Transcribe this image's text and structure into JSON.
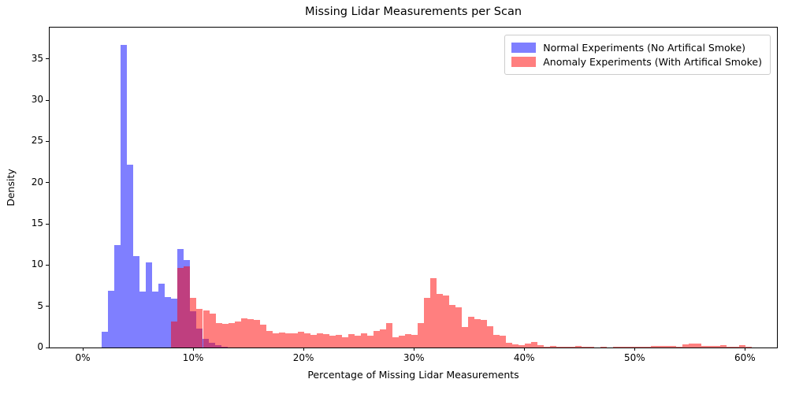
{
  "chart_data": {
    "type": "bar",
    "subtype": "overlaid-density-histogram",
    "title": "Missing Lidar Measurements per Scan",
    "xlabel": "Percentage of Missing Lidar Measurements",
    "ylabel": "Density",
    "grid": false,
    "legend_position": "upper right",
    "xlim": [
      -3.0,
      62.9
    ],
    "ylim": [
      0,
      38.8
    ],
    "x_ticks": [
      {
        "value": 0,
        "label": "0%"
      },
      {
        "value": 10,
        "label": "10%"
      },
      {
        "value": 20,
        "label": "20%"
      },
      {
        "value": 30,
        "label": "30%"
      },
      {
        "value": 40,
        "label": "40%"
      },
      {
        "value": 50,
        "label": "50%"
      },
      {
        "value": 60,
        "label": "60%"
      }
    ],
    "y_ticks": [
      {
        "value": 0,
        "label": "0"
      },
      {
        "value": 5,
        "label": "5"
      },
      {
        "value": 10,
        "label": "10"
      },
      {
        "value": 15,
        "label": "15"
      },
      {
        "value": 20,
        "label": "20"
      },
      {
        "value": 25,
        "label": "25"
      },
      {
        "value": 30,
        "label": "30"
      },
      {
        "value": 35,
        "label": "35"
      }
    ],
    "bin_width_percent": 0.5714,
    "overlap_color": "#bf3f7f",
    "series": [
      {
        "name": "Normal Experiments (No Artifical Smoke)",
        "color": "rgba(0,0,255,0.5)",
        "flat_color": "#7f7fff",
        "bin_start_percent": 1.74,
        "densities": [
          1.9,
          6.9,
          12.4,
          36.7,
          22.2,
          11.1,
          6.8,
          10.3,
          6.8,
          7.7,
          6.1,
          5.9,
          11.9,
          10.6,
          4.4,
          2.3,
          1.1,
          0.6,
          0.3,
          0.1
        ]
      },
      {
        "name": "Anomaly Experiments (With Artifical Smoke)",
        "color": "rgba(255,0,0,0.5)",
        "flat_color": "#ff7f7f",
        "bin_start_percent": 8.03,
        "densities": [
          3.2,
          9.7,
          9.8,
          6.0,
          4.7,
          4.5,
          4.1,
          3.0,
          2.9,
          3.0,
          3.2,
          3.5,
          3.4,
          3.3,
          2.8,
          2.0,
          1.75,
          1.85,
          1.7,
          1.75,
          1.9,
          1.75,
          1.5,
          1.7,
          1.6,
          1.4,
          1.5,
          1.2,
          1.6,
          1.45,
          1.7,
          1.4,
          2.0,
          2.2,
          3.0,
          1.2,
          1.4,
          1.6,
          1.5,
          3.0,
          6.05,
          8.4,
          6.5,
          6.3,
          5.2,
          4.9,
          2.5,
          3.75,
          3.4,
          3.3,
          2.6,
          1.5,
          1.4,
          0.6,
          0.4,
          0.25,
          0.5,
          0.7,
          0.25,
          0.1,
          0.15,
          0.05,
          0.05,
          0.1,
          0.15,
          0.1,
          0.05,
          0,
          0.05,
          0,
          0.1,
          0.1,
          0.05,
          0.05,
          0.05,
          0.1,
          0.15,
          0.2,
          0.2,
          0.15,
          0.1,
          0.35,
          0.5,
          0.45,
          0.15,
          0.15,
          0.15,
          0.25,
          0.1,
          0.05,
          0.3,
          0.05
        ]
      }
    ]
  }
}
